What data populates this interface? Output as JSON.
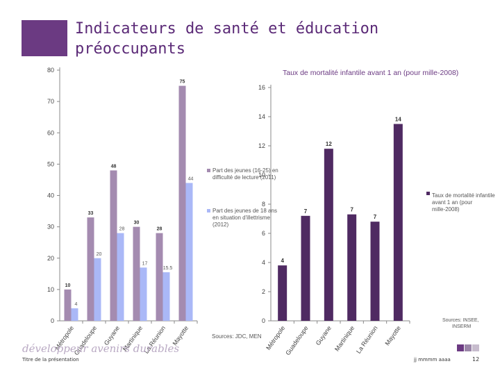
{
  "slide": {
    "title_line1": "Indicateurs de santé et éducation",
    "title_line2": "préoccupants",
    "brand_text": "développeur avenirs durables",
    "footer_title": "Titre de la présentation",
    "footer_date": "jj mmmm aaaa",
    "page_number": "12",
    "left_source": "Sources: JDC, MEN",
    "right_source_line1": "Sources: INSEE,",
    "right_source_line2": "INSERM"
  },
  "colors": {
    "accent": "#6b3a82",
    "series_reading": "#a48bb0",
    "series_illiteracy": "#aab8f7",
    "series_mortality": "#4f2a62"
  },
  "chart_data": [
    {
      "type": "bar",
      "title": "",
      "categories": [
        "Métropole",
        "Guadeloupe",
        "Guyane",
        "Martinique",
        "La Réunion",
        "Mayotte"
      ],
      "series": [
        {
          "name": "Part des jeunes (16-25) en difficulté de lecture (2011)",
          "legend_lines": [
            "Part des jeunes (16-25) en",
            "difficulté de lecture (2011)"
          ],
          "values": [
            10,
            33,
            48,
            30,
            28,
            75
          ],
          "labels": [
            "10",
            "33",
            "48",
            "30",
            "28",
            "75"
          ]
        },
        {
          "name": "Part des jeunes de 18 ans en situation d'illettrisme (2012)",
          "legend_lines": [
            "Part des jeunes de 18 ans",
            "en situation d'illettrisme",
            "(2012)"
          ],
          "values": [
            4,
            20,
            28,
            17,
            15.5,
            44
          ],
          "labels": [
            "4",
            "20",
            "28",
            "17",
            "15.5",
            "44"
          ]
        }
      ],
      "xlabel": "",
      "ylabel": "",
      "ylim": [
        0,
        80
      ],
      "yticks": [
        "0",
        "10",
        "20",
        "30",
        "40",
        "50",
        "60",
        "70",
        "80"
      ],
      "legend_position": "right"
    },
    {
      "type": "bar",
      "title": "Taux de mortalité infantile avant 1 an (pour mille-2008)",
      "categories": [
        "Métropole",
        "Guadeloupe",
        "Guyane",
        "Martinique",
        "La Réunion",
        "Mayotte"
      ],
      "series": [
        {
          "name": "Taux de mortalité infantile avant 1 an (pour mille-2008)",
          "legend_lines": [
            "Taux de mortalité infantile",
            "avant 1 an (pour",
            "mille-2008)"
          ],
          "values": [
            3.8,
            7.2,
            11.8,
            7.3,
            6.8,
            13.5
          ],
          "labels": [
            "4",
            "7",
            "12",
            "7",
            "7",
            "14"
          ]
        }
      ],
      "xlabel": "",
      "ylabel": "",
      "ylim": [
        0,
        16
      ],
      "yticks": [
        "0",
        "2",
        "4",
        "6",
        "8",
        "10",
        "12",
        "14",
        "16"
      ],
      "legend_position": "right"
    }
  ]
}
